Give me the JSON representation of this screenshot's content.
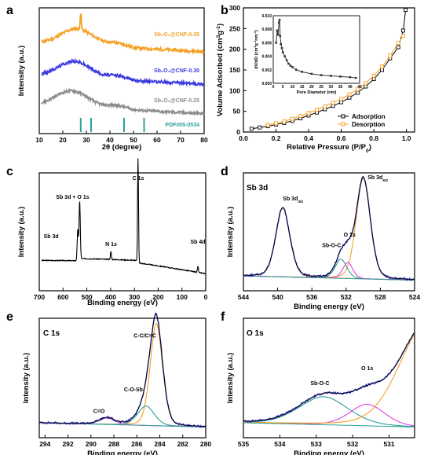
{
  "panel_labels": [
    "a",
    "b",
    "c",
    "d",
    "e",
    "f"
  ],
  "chart_data": [
    {
      "panel": "a",
      "type": "line",
      "xlabel": "2θ (degree)",
      "ylabel": "Intensity (a.u.)",
      "xlim": [
        10,
        80
      ],
      "xticks": [
        10,
        20,
        30,
        40,
        50,
        60,
        70,
        80
      ],
      "series": [
        {
          "name": "Sb₂O₃@CNF-0.35",
          "color": "#f5a023",
          "broad_peak_center": 26,
          "sharp_peak_at": 27.6,
          "offset": 3.0
        },
        {
          "name": "Sb₂O₃@CNF-0.30",
          "color": "#3b3be0",
          "broad_peak_center": 25,
          "offset": 1.9
        },
        {
          "name": "Sb₂O₃@CNF-0.25",
          "color": "#8c8c8c",
          "broad_peak_center": 24,
          "offset": 0.9
        }
      ],
      "reference": {
        "name": "PDF#05-0534",
        "color": "#2aa198",
        "lines": [
          27.6,
          32.0,
          46.0,
          54.5
        ]
      }
    },
    {
      "panel": "b",
      "type": "line",
      "xlabel": "Relative Pressure (P/P0)",
      "ylabel": "Volume Adsorbed (cm3g-1)",
      "xlim": [
        0,
        1.05
      ],
      "ylim": [
        0,
        300
      ],
      "xticks": [
        0.0,
        0.2,
        0.4,
        0.6,
        0.8,
        1.0
      ],
      "yticks": [
        0,
        50,
        100,
        150,
        200,
        250,
        300
      ],
      "legend": "bottom-right",
      "series": [
        {
          "name": "Adsorption",
          "color": "#000000",
          "x": [
            0.05,
            0.1,
            0.15,
            0.2,
            0.25,
            0.3,
            0.35,
            0.4,
            0.45,
            0.5,
            0.55,
            0.6,
            0.65,
            0.7,
            0.75,
            0.8,
            0.85,
            0.9,
            0.95,
            0.98,
            0.995
          ],
          "y": [
            8,
            11,
            14,
            18,
            22,
            27,
            33,
            40,
            47,
            55,
            63,
            72,
            83,
            95,
            110,
            128,
            150,
            178,
            205,
            245,
            295
          ]
        },
        {
          "name": "Desorption",
          "color": "#f5a023",
          "x": [
            0.15,
            0.2,
            0.25,
            0.3,
            0.35,
            0.4,
            0.45,
            0.5,
            0.55,
            0.6,
            0.65,
            0.7,
            0.75,
            0.8,
            0.85,
            0.9,
            0.95,
            0.98
          ],
          "y": [
            17,
            21,
            26,
            32,
            39,
            46,
            54,
            62,
            71,
            80,
            91,
            103,
            118,
            136,
            158,
            185,
            215,
            232
          ]
        }
      ],
      "inset": {
        "type": "line",
        "xlabel": "Pore Diameter (nm)",
        "ylabel": "dV/dD (cm3g-1nm-1)",
        "xlim": [
          0,
          45
        ],
        "ylim": [
          0,
          0.01
        ],
        "xticks": [
          0,
          5,
          10,
          15,
          20,
          25,
          30,
          35,
          40,
          45
        ],
        "yticks": [
          "0.000",
          "0.002",
          "0.004",
          "0.006",
          "0.008",
          "0.010"
        ],
        "x": [
          1.5,
          2.0,
          2.5,
          3.0,
          3.3,
          3.6,
          4.0,
          4.5,
          5.0,
          6,
          7,
          8,
          9,
          10,
          12,
          15,
          20,
          25,
          30,
          35,
          40,
          43
        ],
        "y": [
          0.006,
          0.0078,
          0.0072,
          0.009,
          0.0094,
          0.007,
          0.0058,
          0.0052,
          0.0046,
          0.004,
          0.0034,
          0.0029,
          0.0026,
          0.0024,
          0.002,
          0.0017,
          0.0014,
          0.0012,
          0.0011,
          0.001,
          0.0009,
          0.0008
        ]
      }
    },
    {
      "panel": "c",
      "type": "line",
      "xlabel": "Binding energy (eV)",
      "ylabel": "Intensity (a.u.)",
      "xlim": [
        700,
        0
      ],
      "xticks": [
        700,
        600,
        500,
        400,
        300,
        200,
        100,
        0
      ],
      "annotations": [
        "C 1s",
        "Sb 3d + O 1s",
        "Sb 3d",
        "N 1s",
        "Sb 4d"
      ],
      "series": [
        {
          "name": "",
          "color": "#000000",
          "peaks": [
            {
              "at": 530,
              "h": 0.52
            },
            {
              "at": 538,
              "h": 0.28
            },
            {
              "at": 399,
              "h": 0.07
            },
            {
              "at": 284.6,
              "h": 0.95
            },
            {
              "at": 33,
              "h": 0.06
            }
          ]
        }
      ]
    },
    {
      "panel": "d",
      "title": "Sb 3d",
      "type": "line",
      "xlabel": "Binding energy (eV)",
      "ylabel": "Intensity (a.u.)",
      "xlim": [
        544,
        524
      ],
      "xticks": [
        544,
        540,
        536,
        532,
        528,
        524
      ],
      "annotations": [
        "Sb 3d3/2",
        "Sb 3d5/2",
        "Sb-O-C",
        "O 1s"
      ],
      "components": [
        {
          "name": "Sb 3d3/2",
          "center": 539.4,
          "height": 0.65,
          "width": 0.85,
          "color": "#f5a023"
        },
        {
          "name": "Sb 3d5/2",
          "center": 530.0,
          "height": 0.95,
          "width": 0.85,
          "color": "#f5a023"
        },
        {
          "name": "Sb-O-C",
          "center": 532.6,
          "height": 0.18,
          "width": 0.7,
          "color": "#2aa198"
        },
        {
          "name": "O 1s",
          "center": 531.8,
          "height": 0.15,
          "width": 0.6,
          "color": "#e040e0"
        }
      ],
      "colors": {
        "raw": "#2a2ab8",
        "fit": "#000000",
        "background": "#2aa198"
      }
    },
    {
      "panel": "e",
      "title": "C 1s",
      "type": "line",
      "xlabel": "Binding energy (eV)",
      "ylabel": "Intensity (a.u.)",
      "xlim": [
        294.5,
        280
      ],
      "xticks": [
        294,
        292,
        290,
        288,
        286,
        284,
        282,
        280
      ],
      "annotations": [
        "C-C/C=C",
        "C-O-Sb",
        "C=O"
      ],
      "components": [
        {
          "name": "C-C/C=C",
          "center": 284.3,
          "height": 0.95,
          "width": 0.55,
          "color": "#f5a023"
        },
        {
          "name": "C-O-Sb",
          "center": 285.2,
          "height": 0.18,
          "width": 0.75,
          "color": "#2aa198"
        },
        {
          "name": "C=O",
          "center": 288.6,
          "height": 0.06,
          "width": 0.7,
          "color": "#e040e0"
        }
      ],
      "colors": {
        "raw": "#2a2ab8",
        "fit": "#000000",
        "background": "#2aa198"
      }
    },
    {
      "panel": "f",
      "title": "O 1s",
      "type": "line",
      "xlabel": "Binding energy (eV)",
      "ylabel": "Intensity (a.u.)",
      "xlim": [
        535,
        530.3
      ],
      "xticks": [
        535,
        534,
        533,
        532,
        531
      ],
      "annotations": [
        "Sb-O-C",
        "O 1s"
      ],
      "components": [
        {
          "name": "Sb-O-C",
          "center": 532.8,
          "height": 0.26,
          "width": 0.7,
          "color": "#2aa198"
        },
        {
          "name": "O 1s",
          "center": 531.6,
          "height": 0.2,
          "width": 0.5,
          "color": "#e040e0"
        },
        {
          "name": "Sb 3d5/2 tail",
          "center": 530.0,
          "height": 0.95,
          "width": 0.75,
          "color": "#f5a023"
        }
      ],
      "colors": {
        "raw": "#2a2ab8",
        "fit": "#000000",
        "background": "#2aa198"
      }
    }
  ]
}
